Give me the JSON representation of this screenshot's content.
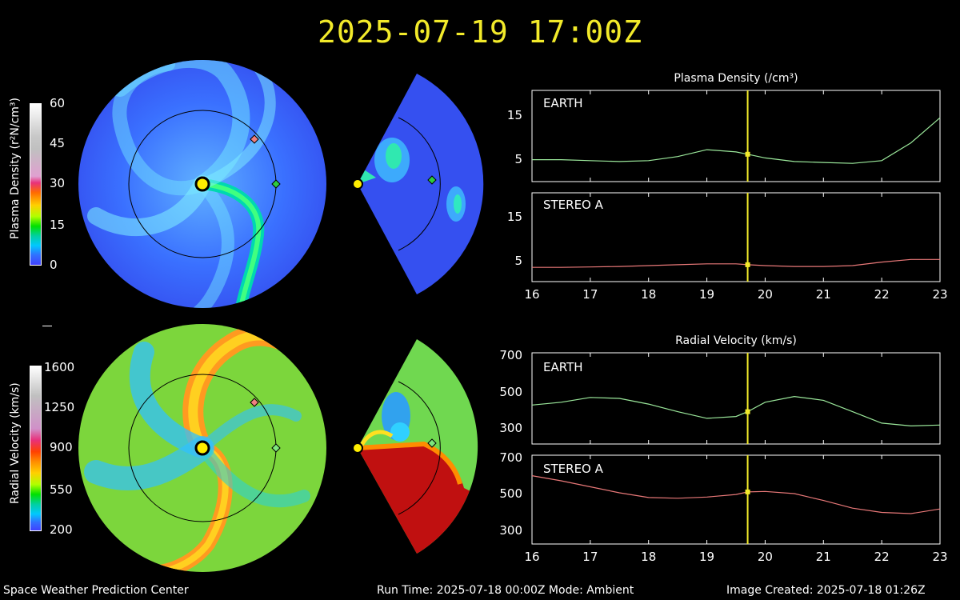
{
  "header": {
    "timestamp": "2025-07-19 17:00Z"
  },
  "colorbars": {
    "density": {
      "label": "Plasma Density (r²N/cm³)",
      "ticks": [
        "60",
        "45",
        "30",
        "15",
        "0"
      ]
    },
    "velocity": {
      "label": "Radial Velocity (km/s)",
      "ticks": [
        "1600",
        "1250",
        "900",
        "550",
        "200"
      ]
    }
  },
  "panels": {
    "density": {
      "title": "Plasma Density (/cm³)",
      "earth": {
        "name": "EARTH",
        "yticks": [
          "15",
          "5"
        ]
      },
      "stereo": {
        "name": "STEREO A",
        "yticks": [
          "15",
          "5"
        ]
      }
    },
    "velocity": {
      "title": "Radial Velocity (km/s)",
      "earth": {
        "name": "EARTH",
        "yticks": [
          "700",
          "500",
          "300"
        ]
      },
      "stereo": {
        "name": "STEREO A",
        "yticks": [
          "700",
          "500",
          "300"
        ]
      }
    },
    "xticks": [
      "16",
      "17",
      "18",
      "19",
      "20",
      "21",
      "22",
      "23"
    ]
  },
  "footer": {
    "org": "Space Weather Prediction Center",
    "run": "Run Time: 2025-07-18 00:00Z  Mode: Ambient",
    "created": "Image Created: 2025-07-18 01:26Z"
  },
  "colors": {
    "title": "#f2ea2a",
    "earth": "#2ecc40",
    "earth_line": "#9be89b",
    "stereo": "#f08080",
    "stereo_line": "#e87878",
    "sun": "#ffee00",
    "marker": "#f2ea2a"
  },
  "chart_data": [
    {
      "type": "line",
      "title": "Plasma Density (/cm³)",
      "series": [
        {
          "name": "EARTH",
          "x": [
            16,
            16.5,
            17,
            17.5,
            18,
            18.5,
            19,
            19.5,
            19.7,
            20,
            20.5,
            21,
            21.5,
            22,
            22.5,
            23
          ],
          "values": [
            4.8,
            4.8,
            4.6,
            4.4,
            4.6,
            5.5,
            7,
            6.5,
            6,
            5.2,
            4.4,
            4.2,
            4,
            4.6,
            8.5,
            14
          ]
        }
      ],
      "xlim": [
        16,
        23
      ],
      "ylim": [
        0,
        20
      ]
    },
    {
      "type": "line",
      "series": [
        {
          "name": "STEREO A",
          "x": [
            16,
            16.5,
            17,
            17.5,
            18,
            18.5,
            19,
            19.5,
            19.7,
            20,
            20.5,
            21,
            21.5,
            22,
            22.5,
            23
          ],
          "values": [
            3.2,
            3.2,
            3.3,
            3.4,
            3.6,
            3.8,
            4,
            4,
            3.8,
            3.6,
            3.4,
            3.4,
            3.6,
            4.4,
            5,
            5
          ]
        }
      ],
      "xlim": [
        16,
        23
      ],
      "ylim": [
        0,
        20
      ]
    },
    {
      "type": "line",
      "title": "Radial Velocity (km/s)",
      "series": [
        {
          "name": "EARTH",
          "x": [
            16,
            16.5,
            17,
            17.5,
            18,
            18.5,
            19,
            19.5,
            19.7,
            20,
            20.5,
            21,
            21.5,
            22,
            22.5,
            23
          ],
          "values": [
            455,
            470,
            495,
            490,
            460,
            420,
            385,
            395,
            420,
            470,
            500,
            480,
            420,
            360,
            345,
            350
          ]
        }
      ],
      "xlim": [
        16,
        23
      ],
      "ylim": [
        200,
        700
      ]
    },
    {
      "type": "line",
      "series": [
        {
          "name": "STEREO A",
          "x": [
            16,
            16.5,
            17,
            17.5,
            18,
            18.5,
            19,
            19.5,
            19.7,
            20,
            20.5,
            21,
            21.5,
            22,
            22.5,
            23
          ],
          "values": [
            600,
            570,
            535,
            500,
            472,
            468,
            475,
            490,
            505,
            508,
            495,
            455,
            410,
            385,
            378,
            405
          ]
        }
      ],
      "xlim": [
        16,
        23
      ],
      "ylim": [
        200,
        700
      ]
    }
  ]
}
